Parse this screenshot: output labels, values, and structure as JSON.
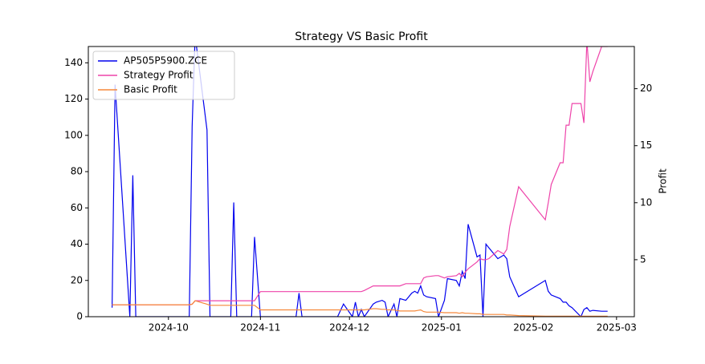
{
  "chart_data": {
    "type": "line",
    "title": "Strategy VS Basic Profit",
    "y2label": "Profit",
    "x": [
      "2024-09-12",
      "2024-09-13",
      "2024-09-18",
      "2024-09-19",
      "2024-09-20",
      "2024-10-08",
      "2024-10-09",
      "2024-10-10",
      "2024-10-14",
      "2024-10-15",
      "2024-10-22",
      "2024-10-23",
      "2024-10-24",
      "2024-10-29",
      "2024-10-30",
      "2024-11-01",
      "2024-11-13",
      "2024-11-14",
      "2024-11-15",
      "2024-11-27",
      "2024-11-29",
      "2024-12-02",
      "2024-12-03",
      "2024-12-04",
      "2024-12-05",
      "2024-12-06",
      "2024-12-09",
      "2024-12-10",
      "2024-12-12",
      "2024-12-13",
      "2024-12-14",
      "2024-12-16",
      "2024-12-17",
      "2024-12-18",
      "2024-12-20",
      "2024-12-22",
      "2024-12-23",
      "2024-12-24",
      "2024-12-25",
      "2024-12-26",
      "2024-12-27",
      "2024-12-30",
      "2024-12-31",
      "2025-01-02",
      "2025-01-03",
      "2025-01-06",
      "2025-01-07",
      "2025-01-08",
      "2025-01-09",
      "2025-01-10",
      "2025-01-13",
      "2025-01-14",
      "2025-01-15",
      "2025-01-16",
      "2025-01-17",
      "2025-01-20",
      "2025-01-22",
      "2025-01-23",
      "2025-01-24",
      "2025-01-27",
      "2025-02-05",
      "2025-02-06",
      "2025-02-07",
      "2025-02-10",
      "2025-02-11",
      "2025-02-12",
      "2025-02-13",
      "2025-02-14",
      "2025-02-17",
      "2025-02-18",
      "2025-02-19",
      "2025-02-20",
      "2025-02-21",
      "2025-02-24",
      "2025-02-26"
    ],
    "series": [
      {
        "name": "AP505P5900.ZCE",
        "color": "#0000ee",
        "axis": "y",
        "values": [
          5,
          128,
          0,
          78,
          0,
          0,
          105,
          155,
          103,
          0,
          0,
          63,
          0,
          0,
          44,
          0,
          0,
          13,
          0,
          0,
          7,
          0,
          8,
          0,
          4,
          0,
          7,
          8,
          9,
          8,
          0,
          7,
          0,
          10,
          9,
          13,
          14,
          13,
          17,
          12,
          11,
          10,
          0,
          9,
          21,
          20,
          17,
          25,
          21,
          51,
          33,
          34,
          0,
          40,
          38,
          32,
          34,
          32,
          22,
          11,
          20,
          14,
          12,
          10,
          8,
          8,
          6,
          5,
          0,
          4,
          5,
          3,
          3.5,
          3,
          3
        ]
      },
      {
        "name": "Strategy Profit",
        "color": "#ee44aa",
        "axis": "y2",
        "values": [
          1.05,
          1.05,
          1.05,
          1.05,
          1.05,
          1.05,
          1.1,
          1.4,
          1.4,
          1.4,
          1.4,
          1.4,
          1.4,
          1.4,
          1.4,
          2.2,
          2.2,
          2.2,
          2.2,
          2.2,
          2.2,
          2.2,
          2.2,
          2.2,
          2.2,
          2.3,
          2.7,
          2.7,
          2.7,
          2.7,
          2.7,
          2.7,
          2.7,
          2.7,
          2.9,
          2.9,
          2.9,
          2.9,
          2.9,
          3.4,
          3.5,
          3.6,
          3.6,
          3.4,
          3.5,
          3.6,
          3.8,
          3.5,
          3.9,
          4.2,
          4.8,
          5.1,
          5.0,
          5.0,
          5.1,
          5.8,
          5.5,
          5.9,
          7.9,
          11.4,
          8.5,
          10.0,
          11.6,
          13.5,
          13.5,
          16.8,
          16.8,
          18.7,
          18.7,
          17.0,
          24.2,
          20.6,
          21.5,
          23.7,
          23.7
        ]
      },
      {
        "name": "Basic Profit",
        "color": "#f5883a",
        "axis": "y2",
        "values": [
          1.05,
          1.05,
          1.05,
          1.05,
          1.05,
          1.05,
          1.1,
          1.4,
          1.1,
          1.0,
          1.0,
          1.0,
          1.0,
          1.0,
          1.0,
          0.6,
          0.6,
          0.6,
          0.6,
          0.6,
          0.6,
          0.6,
          0.6,
          0.6,
          0.6,
          0.6,
          0.7,
          0.7,
          0.65,
          0.65,
          0.6,
          0.6,
          0.55,
          0.5,
          0.5,
          0.5,
          0.5,
          0.55,
          0.6,
          0.45,
          0.4,
          0.4,
          0.4,
          0.35,
          0.35,
          0.35,
          0.3,
          0.35,
          0.3,
          0.3,
          0.25,
          0.25,
          0.2,
          0.2,
          0.2,
          0.2,
          0.2,
          0.15,
          0.15,
          0.1,
          0.05,
          0.05,
          0.05,
          0.05,
          0.05,
          0.05,
          0.05,
          0.05,
          0.05,
          0.05,
          0.05,
          0.05,
          0.05,
          0.05,
          0.05
        ]
      }
    ],
    "xlim": [
      "2024-09-04",
      "2025-03-07"
    ],
    "xticks": [
      {
        "value": "2024-10-01",
        "label": "2024-10"
      },
      {
        "value": "2024-11-01",
        "label": "2024-11"
      },
      {
        "value": "2024-12-01",
        "label": "2024-12"
      },
      {
        "value": "2025-01-01",
        "label": "2025-01"
      },
      {
        "value": "2025-02-01",
        "label": "2025-02"
      },
      {
        "value": "2025-03-01",
        "label": "2025-03"
      }
    ],
    "ylim": [
      0,
      149
    ],
    "yticks": [
      0,
      20,
      40,
      60,
      80,
      100,
      120,
      140
    ],
    "y2lim": [
      0,
      23.7
    ],
    "y2ticks": [
      5,
      10,
      15,
      20
    ],
    "legend": "upper-left",
    "grid": false
  }
}
